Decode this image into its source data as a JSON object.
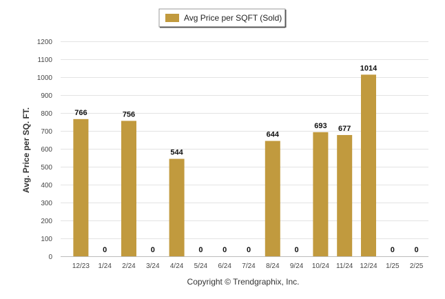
{
  "chart_data": {
    "type": "bar",
    "categories": [
      "12/23",
      "1/24",
      "2/24",
      "3/24",
      "4/24",
      "5/24",
      "6/24",
      "7/24",
      "8/24",
      "9/24",
      "10/24",
      "11/24",
      "12/24",
      "1/25",
      "2/25"
    ],
    "series": [
      {
        "name": "Avg Price per SQFT (Sold)",
        "values": [
          766,
          0,
          756,
          0,
          544,
          0,
          0,
          0,
          644,
          0,
          693,
          677,
          1014,
          0,
          0
        ]
      }
    ],
    "ylabel": "Avg. Price per SQ. FT.",
    "xlabel": "",
    "ylim": [
      0,
      1200
    ],
    "yticks": [
      0,
      100,
      200,
      300,
      400,
      500,
      600,
      700,
      800,
      900,
      1000,
      1100,
      1200
    ],
    "grid": true,
    "legend_position": "top-center",
    "bar_color": "#C19A3E",
    "data_labels": true
  },
  "footer": {
    "copyright": "Copyright © Trendgraphix, Inc."
  }
}
